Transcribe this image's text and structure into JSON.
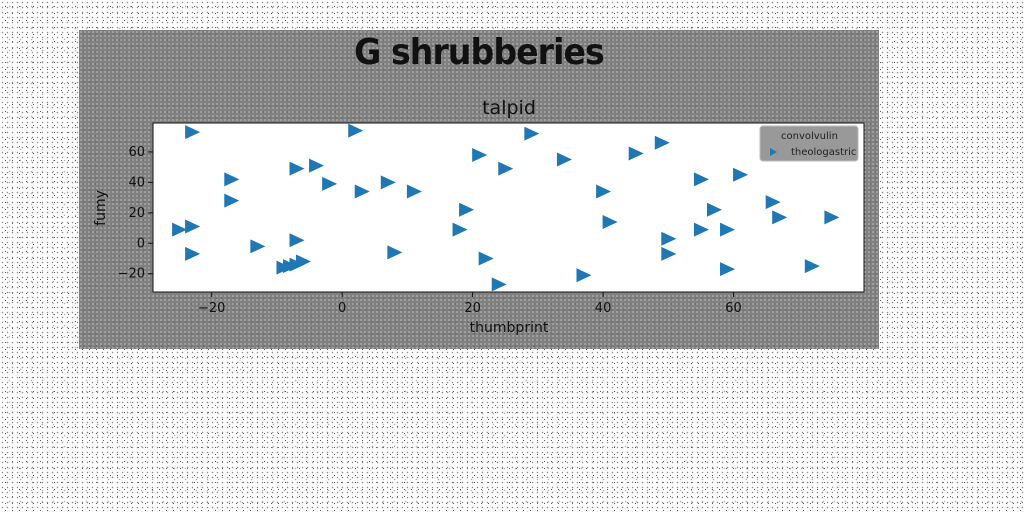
{
  "chart_data": {
    "type": "scatter",
    "suptitle": "G shrubberies",
    "title": "talpid",
    "xlabel": "thumbprint",
    "ylabel": "fumy",
    "xlim": [
      -29,
      80
    ],
    "ylim": [
      -32,
      79
    ],
    "xticks": [
      -20,
      0,
      20,
      40,
      60
    ],
    "xtick_labels": [
      "−20",
      "0",
      "20",
      "40",
      "60"
    ],
    "yticks": [
      -20,
      0,
      20,
      40,
      60
    ],
    "ytick_labels": [
      "−20",
      "0",
      "20",
      "40",
      "60"
    ],
    "grid": false,
    "legend": {
      "placement": "upper-right",
      "entries": [
        {
          "label": "convolvulin",
          "marker": "none"
        },
        {
          "label": "theologastric",
          "marker": "triangle-right",
          "color": "#1f77b4"
        }
      ]
    },
    "series": [
      {
        "name": "theologastric",
        "marker": "triangle-right",
        "color": "#1f77b4",
        "points": [
          [
            -23,
            73
          ],
          [
            -25,
            9
          ],
          [
            -23,
            11
          ],
          [
            -23,
            -7
          ],
          [
            -17,
            42
          ],
          [
            -17,
            28
          ],
          [
            -13,
            -2
          ],
          [
            -7,
            49
          ],
          [
            -4,
            51
          ],
          [
            -7,
            2
          ],
          [
            -6,
            -12
          ],
          [
            -8,
            -15
          ],
          [
            -9,
            -16
          ],
          [
            -7,
            -14
          ],
          [
            -2,
            39
          ],
          [
            2,
            74
          ],
          [
            3,
            34
          ],
          [
            7,
            40
          ],
          [
            8,
            -6
          ],
          [
            11,
            34
          ],
          [
            18,
            9
          ],
          [
            19,
            22
          ],
          [
            21,
            58
          ],
          [
            22,
            -10
          ],
          [
            24,
            -27
          ],
          [
            25,
            49
          ],
          [
            29,
            72
          ],
          [
            34,
            55
          ],
          [
            37,
            -21
          ],
          [
            40,
            34
          ],
          [
            41,
            14
          ],
          [
            45,
            59
          ],
          [
            49,
            66
          ],
          [
            50,
            3
          ],
          [
            50,
            -7
          ],
          [
            55,
            9
          ],
          [
            55,
            42
          ],
          [
            57,
            22
          ],
          [
            59,
            9
          ],
          [
            59,
            -17
          ],
          [
            61,
            45
          ],
          [
            66,
            27
          ],
          [
            67,
            17
          ],
          [
            72,
            -15
          ],
          [
            75,
            17
          ]
        ]
      }
    ]
  }
}
